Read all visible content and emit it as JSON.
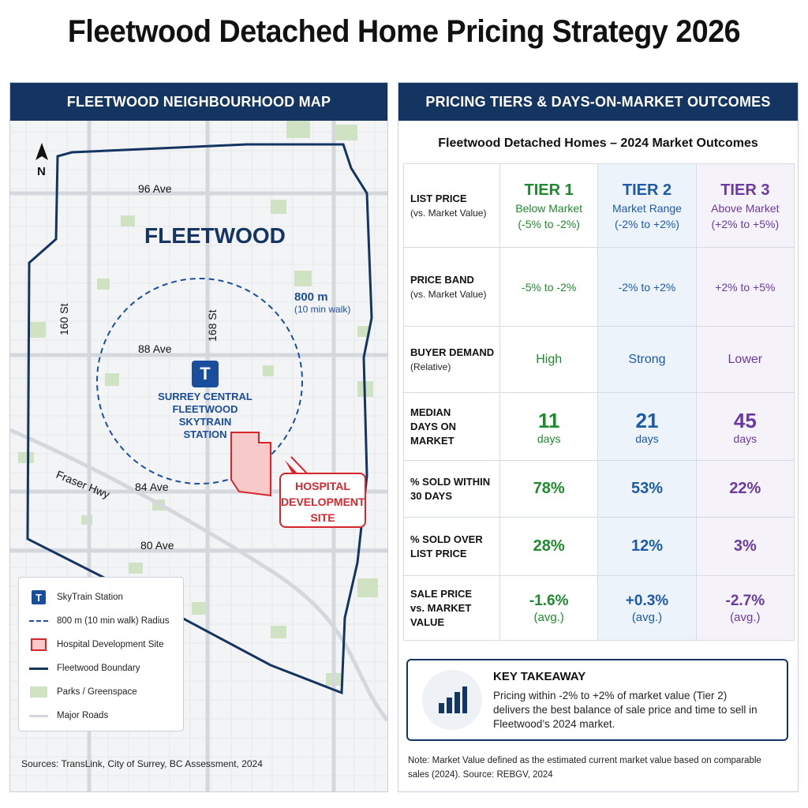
{
  "title": "Fleetwood Detached Home Pricing Strategy 2026",
  "map_panel": {
    "header": "FLEETWOOD NEIGHBOURHOOD MAP",
    "north_label": "N",
    "area_name": "FLEETWOOD",
    "streets": {
      "ave96": "96 Ave",
      "ave88": "88 Ave",
      "ave84": "84 Ave",
      "ave80": "80 Ave",
      "st160": "160 St",
      "st168": "168 St",
      "fraser": "Fraser Hwy"
    },
    "radius_label": "800 m",
    "radius_sublabel": "(10 min walk)",
    "station_symbol": "T",
    "station_name_lines": [
      "SURREY CENTRAL",
      "FLEETWOOD",
      "SKYTRAIN STATION"
    ],
    "hospital_lines": [
      "HOSPITAL",
      "DEVELOPMENT",
      "SITE"
    ],
    "legend": [
      {
        "key": "station",
        "label": "SkyTrain Station"
      },
      {
        "key": "dash",
        "label": "800 m (10 min walk) Radius"
      },
      {
        "key": "hospital",
        "label": "Hospital Development Site"
      },
      {
        "key": "boundary",
        "label": "Fleetwood Boundary"
      },
      {
        "key": "park",
        "label": "Parks / Greenspace"
      },
      {
        "key": "road",
        "label": "Major Roads"
      }
    ],
    "sources": "Sources: TransLink, City of Surrey, BC Assessment, 2024",
    "colors": {
      "boundary": "#143561",
      "station": "#1a4d9c",
      "hospital": "#d7262b",
      "park": "#cfe3c2",
      "road": "#d4d8dd"
    }
  },
  "tiers_panel": {
    "header": "PRICING TIERS & DAYS-ON-MARKET OUTCOMES",
    "table_title": "Fleetwood Detached Homes – 2024 Market Outcomes",
    "tiers": [
      {
        "name": "TIER 1",
        "desc": "Below Market",
        "range": "(-5% to -2%)",
        "color": "#1e8a2e"
      },
      {
        "name": "TIER 2",
        "desc": "Market Range",
        "range": "(-2% to +2%)",
        "color": "#1d5aa8"
      },
      {
        "name": "TIER 3",
        "desc": "Above Market",
        "range": "(+2% to +5%)",
        "color": "#6a3aa0"
      }
    ],
    "rows": {
      "list_price": {
        "label": "LIST PRICE",
        "sub": "(vs. Market Value)"
      },
      "price_band": {
        "label": "PRICE BAND",
        "sub": "(vs. Market Value)",
        "values": [
          "-5% to -2%",
          "-2% to +2%",
          "+2% to +5%"
        ]
      },
      "buyer_demand": {
        "label": "BUYER DEMAND",
        "sub": "(Relative)",
        "values": [
          "High",
          "Strong",
          "Lower"
        ]
      },
      "median_dom": {
        "label": "MEDIAN",
        "label2": "DAYS ON MARKET",
        "values": [
          "11",
          "21",
          "45"
        ],
        "unit": "days"
      },
      "sold_30": {
        "label": "% SOLD WITHIN",
        "label2": "30 DAYS",
        "values": [
          "78%",
          "53%",
          "22%"
        ]
      },
      "sold_over": {
        "label": "% SOLD OVER",
        "label2": "LIST PRICE",
        "values": [
          "28%",
          "12%",
          "3%"
        ]
      },
      "sale_price": {
        "label": "SALE PRICE",
        "label2": "vs. MARKET VALUE",
        "values": [
          "-1.6%",
          "+0.3%",
          "-2.7%"
        ],
        "avg": "(avg.)"
      }
    },
    "takeaway": {
      "title": "KEY TAKEAWAY",
      "text": "Pricing within -2% to +2% of market value (Tier 2) delivers the best balance of sale price and time to sell in Fleetwood’s 2024 market."
    },
    "note": "Note: Market Value defined as the estimated current market value based on comparable sales (2024). Source: REBGV, 2024"
  }
}
